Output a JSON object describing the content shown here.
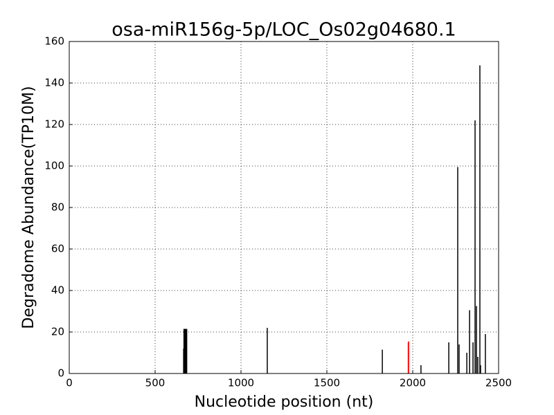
{
  "chart_data": {
    "type": "vlines",
    "title": "osa-miR156g-5p/LOC_Os02g04680.1",
    "x_label": "Nucleotide position (nt)",
    "y_label": "Degradome Abundance(TP10M)",
    "xlim": [
      0,
      2500
    ],
    "xticks": [
      0,
      500,
      1000,
      1500,
      2000,
      2500
    ],
    "ylim": [
      0,
      160
    ],
    "yticks": [
      0,
      20,
      40,
      60,
      80,
      100,
      120,
      140,
      160
    ],
    "grid": true,
    "series": [
      {
        "color": "#000000",
        "x": [
          666,
          668,
          670,
          672,
          674,
          676,
          678,
          680,
          682,
          684,
          1153,
          1823,
          2048,
          2210,
          2262,
          2270,
          2315,
          2331,
          2351,
          2363,
          2371,
          2379,
          2391,
          2395,
          2423
        ],
        "values": [
          12,
          21.5,
          21.5,
          21.5,
          21.5,
          21.5,
          21.5,
          21.5,
          21.5,
          21.5,
          22,
          11.5,
          4,
          15,
          99.5,
          14,
          10,
          30.5,
          15,
          122,
          32.5,
          8,
          148.5,
          4,
          19
        ]
      },
      {
        "color": "#ff0000",
        "x": [
          1974,
          1976
        ],
        "values": [
          15,
          15.5
        ]
      }
    ]
  }
}
